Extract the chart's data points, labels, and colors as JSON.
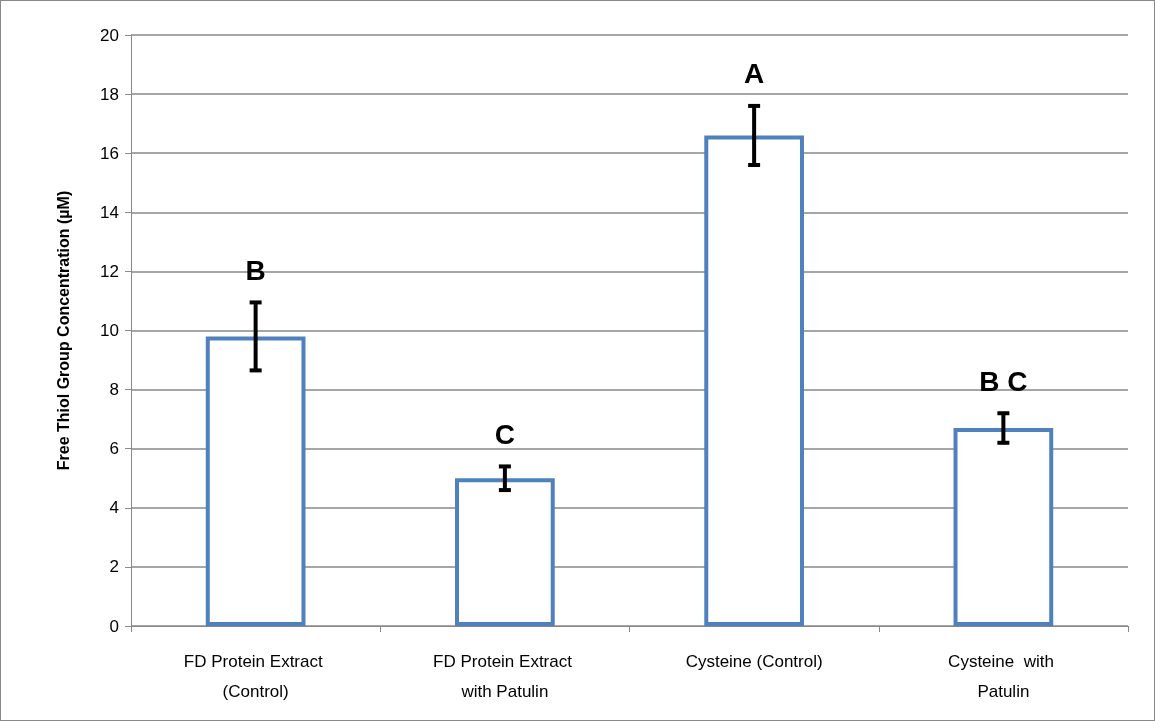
{
  "chart_data": {
    "type": "bar",
    "ylabel": "Free Thiol Group Concentration (µM)",
    "categories": [
      "FD Protein Extract (Control)",
      "FD Protein Extract with Patulin",
      "Cysteine (Control)",
      "Cysteine  with Patulin"
    ],
    "values": [
      9.8,
      5.0,
      16.6,
      6.7
    ],
    "errors": [
      1.15,
      0.4,
      1.0,
      0.5
    ],
    "color": "#4f81bd",
    "ylim": [
      0,
      20
    ],
    "yticks": [
      0,
      2,
      4,
      6,
      8,
      10,
      12,
      14,
      16,
      18,
      20
    ],
    "grid": "y",
    "annotations": [
      "B",
      "C",
      "A",
      "B C"
    ]
  }
}
